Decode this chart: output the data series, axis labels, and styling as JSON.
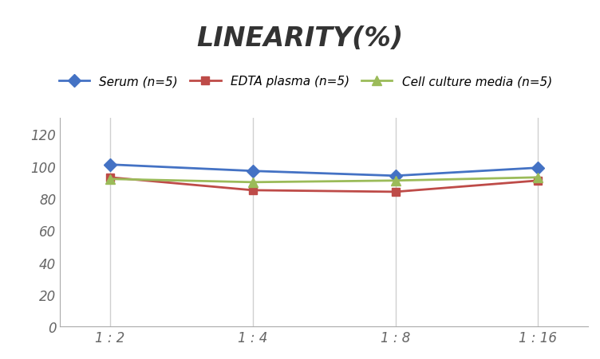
{
  "title": "LINEARITY(%)",
  "title_fontsize": 24,
  "title_fontstyle": "italic",
  "title_fontweight": "bold",
  "title_color": "#333333",
  "x_labels": [
    "1 : 2",
    "1 : 4",
    "1 : 8",
    "1 : 16"
  ],
  "x_positions": [
    0,
    1,
    2,
    3
  ],
  "series": [
    {
      "label": "Serum (n=5)",
      "values": [
        101,
        97,
        94,
        99
      ],
      "color": "#4472C4",
      "marker": "D",
      "marker_size": 8,
      "linewidth": 2.0
    },
    {
      "label": "EDTA plasma (n=5)",
      "values": [
        93,
        85,
        84,
        91
      ],
      "color": "#BE4B48",
      "marker": "s",
      "marker_size": 7,
      "linewidth": 2.0
    },
    {
      "label": "Cell culture media (n=5)",
      "values": [
        92,
        90,
        91,
        93
      ],
      "color": "#9BBB59",
      "marker": "^",
      "marker_size": 9,
      "linewidth": 2.0
    }
  ],
  "ylim": [
    0,
    130
  ],
  "yticks": [
    0,
    20,
    40,
    60,
    80,
    100,
    120
  ],
  "grid_color": "#d0d0d0",
  "background_color": "#ffffff",
  "legend_fontsize": 11,
  "tick_label_fontsize": 12,
  "tick_label_fontstyle": "italic",
  "xlim": [
    -0.35,
    3.35
  ]
}
